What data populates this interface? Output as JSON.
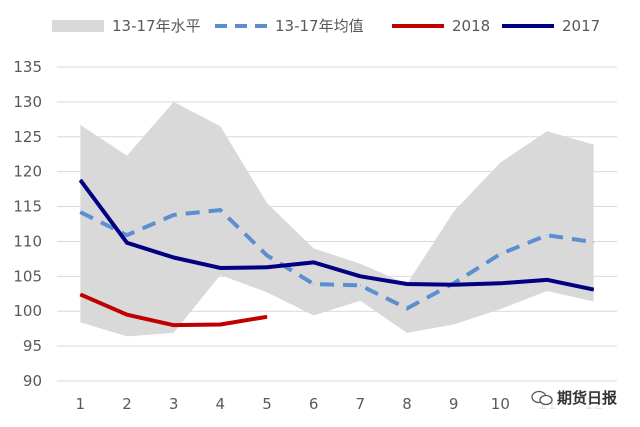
{
  "chart_data": {
    "type": "line",
    "title": "",
    "xlabel": "",
    "ylabel": "",
    "categories": [
      "1",
      "2",
      "3",
      "4",
      "5",
      "6",
      "7",
      "8",
      "9",
      "10",
      "11",
      "12"
    ],
    "ylim": [
      90,
      135
    ],
    "yticks": [
      "90",
      "95",
      "100",
      "105",
      "110",
      "115",
      "120",
      "125",
      "130",
      "135"
    ],
    "grid": true,
    "legend_position": "top",
    "band": {
      "name": "13-17年水平",
      "color": "#d9d9d9",
      "high": [
        126.7,
        122.3,
        130.0,
        126.5,
        115.5,
        109.0,
        106.8,
        103.9,
        114.3,
        121.3,
        125.8,
        123.9
      ],
      "low": [
        98.4,
        96.4,
        96.9,
        105.2,
        102.7,
        99.4,
        101.5,
        96.9,
        98.1,
        100.3,
        102.9,
        101.4
      ]
    },
    "series": [
      {
        "name": "13-17年均值",
        "color": "#5b8fd0",
        "dash": true,
        "values": [
          114.2,
          110.9,
          113.8,
          114.5,
          108.0,
          103.9,
          103.7,
          100.4,
          104.0,
          108.2,
          110.9,
          109.9
        ]
      },
      {
        "name": "2018",
        "color": "#c00000",
        "dash": false,
        "values": [
          102.4,
          99.5,
          98.0,
          98.1,
          99.2,
          null,
          null,
          null,
          null,
          null,
          null,
          null
        ]
      },
      {
        "name": "2017",
        "color": "#000080",
        "dash": false,
        "values": [
          118.8,
          109.8,
          107.7,
          106.2,
          106.3,
          107.0,
          105.0,
          103.9,
          103.8,
          104.0,
          104.5,
          103.1
        ]
      }
    ]
  },
  "watermark": {
    "text": "期货日报",
    "icon": "wechat-icon"
  }
}
